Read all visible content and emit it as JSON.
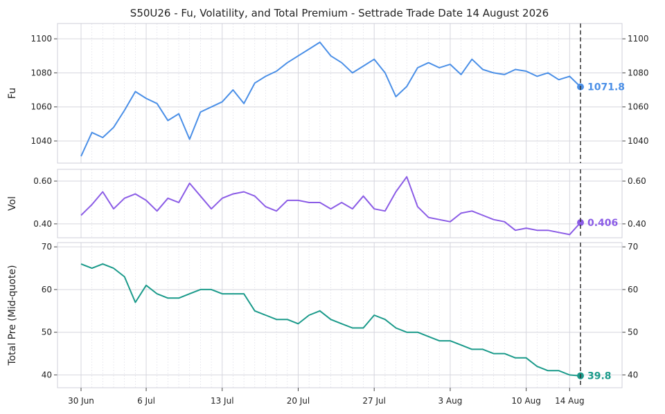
{
  "chart_data": {
    "type": "line",
    "title": "S50U26 - Fu, Volatility, and Total Premium - Settrade Trade Date 14 August 2026",
    "x_ticks": [
      "30 Jun",
      "6 Jul",
      "13 Jul",
      "20 Jul",
      "27 Jul",
      "3 Aug",
      "10 Aug",
      "14 Aug"
    ],
    "marker_date": "15 Aug",
    "grid": true,
    "panels": [
      {
        "id": "fu",
        "ylabel": "Fu",
        "ylim": [
          1027,
          1109
        ],
        "yticks": [
          1040,
          1060,
          1080,
          1100
        ],
        "ytick_labels": [
          "1040",
          "1060",
          "1080",
          "1100"
        ],
        "color": "#4a8fe7",
        "end_value": 1071.8,
        "end_label": "1071.8",
        "series": [
          [
            "30 Jun",
            1031
          ],
          [
            "1 Jul",
            1045
          ],
          [
            "2 Jul",
            1042
          ],
          [
            "3 Jul",
            1048
          ],
          [
            "4 Jul",
            1058
          ],
          [
            "5 Jul",
            1069
          ],
          [
            "6 Jul",
            1065
          ],
          [
            "7 Jul",
            1062
          ],
          [
            "8 Jul",
            1052
          ],
          [
            "9 Jul",
            1056
          ],
          [
            "10 Jul",
            1041
          ],
          [
            "11 Jul",
            1057
          ],
          [
            "12 Jul",
            1060
          ],
          [
            "13 Jul",
            1063
          ],
          [
            "14 Jul",
            1070
          ],
          [
            "15 Jul",
            1062
          ],
          [
            "16 Jul",
            1074
          ],
          [
            "17 Jul",
            1078
          ],
          [
            "18 Jul",
            1081
          ],
          [
            "19 Jul",
            1086
          ],
          [
            "20 Jul",
            1090
          ],
          [
            "21 Jul",
            1094
          ],
          [
            "22 Jul",
            1098
          ],
          [
            "23 Jul",
            1090
          ],
          [
            "24 Jul",
            1086
          ],
          [
            "25 Jul",
            1080
          ],
          [
            "26 Jul",
            1084
          ],
          [
            "27 Jul",
            1088
          ],
          [
            "28 Jul",
            1080
          ],
          [
            "29 Jul",
            1066
          ],
          [
            "30 Jul",
            1072
          ],
          [
            "31 Jul",
            1083
          ],
          [
            "1 Aug",
            1086
          ],
          [
            "2 Aug",
            1083
          ],
          [
            "3 Aug",
            1085
          ],
          [
            "4 Aug",
            1079
          ],
          [
            "5 Aug",
            1088
          ],
          [
            "6 Aug",
            1082
          ],
          [
            "7 Aug",
            1080
          ],
          [
            "8 Aug",
            1079
          ],
          [
            "9 Aug",
            1082
          ],
          [
            "10 Aug",
            1081
          ],
          [
            "11 Aug",
            1078
          ],
          [
            "12 Aug",
            1080
          ],
          [
            "13 Aug",
            1076
          ],
          [
            "14 Aug",
            1078
          ],
          [
            "15 Aug",
            1071.8
          ]
        ]
      },
      {
        "id": "vol",
        "ylabel": "Vol",
        "ylim": [
          0.335,
          0.655
        ],
        "yticks": [
          0.4,
          0.6
        ],
        "ytick_labels": [
          "0.40",
          "0.60"
        ],
        "color": "#8b5ce6",
        "end_value": 0.406,
        "end_label": "0.406",
        "series": [
          [
            "30 Jun",
            0.44
          ],
          [
            "1 Jul",
            0.49
          ],
          [
            "2 Jul",
            0.55
          ],
          [
            "3 Jul",
            0.47
          ],
          [
            "4 Jul",
            0.52
          ],
          [
            "5 Jul",
            0.54
          ],
          [
            "6 Jul",
            0.51
          ],
          [
            "7 Jul",
            0.46
          ],
          [
            "8 Jul",
            0.52
          ],
          [
            "9 Jul",
            0.5
          ],
          [
            "10 Jul",
            0.59
          ],
          [
            "11 Jul",
            0.53
          ],
          [
            "12 Jul",
            0.47
          ],
          [
            "13 Jul",
            0.52
          ],
          [
            "14 Jul",
            0.54
          ],
          [
            "15 Jul",
            0.55
          ],
          [
            "16 Jul",
            0.53
          ],
          [
            "17 Jul",
            0.48
          ],
          [
            "18 Jul",
            0.46
          ],
          [
            "19 Jul",
            0.51
          ],
          [
            "20 Jul",
            0.51
          ],
          [
            "21 Jul",
            0.5
          ],
          [
            "22 Jul",
            0.5
          ],
          [
            "23 Jul",
            0.47
          ],
          [
            "24 Jul",
            0.5
          ],
          [
            "25 Jul",
            0.47
          ],
          [
            "26 Jul",
            0.53
          ],
          [
            "27 Jul",
            0.47
          ],
          [
            "28 Jul",
            0.46
          ],
          [
            "29 Jul",
            0.55
          ],
          [
            "30 Jul",
            0.62
          ],
          [
            "31 Jul",
            0.48
          ],
          [
            "1 Aug",
            0.43
          ],
          [
            "2 Aug",
            0.42
          ],
          [
            "3 Aug",
            0.41
          ],
          [
            "4 Aug",
            0.45
          ],
          [
            "5 Aug",
            0.46
          ],
          [
            "6 Aug",
            0.44
          ],
          [
            "7 Aug",
            0.42
          ],
          [
            "8 Aug",
            0.41
          ],
          [
            "9 Aug",
            0.37
          ],
          [
            "10 Aug",
            0.38
          ],
          [
            "11 Aug",
            0.37
          ],
          [
            "12 Aug",
            0.37
          ],
          [
            "13 Aug",
            0.36
          ],
          [
            "14 Aug",
            0.35
          ],
          [
            "15 Aug",
            0.406
          ]
        ]
      },
      {
        "id": "premium",
        "ylabel": "Total Pre (Mid-quote)",
        "ylim": [
          37,
          71
        ],
        "yticks": [
          40,
          50,
          60,
          70
        ],
        "ytick_labels": [
          "40",
          "50",
          "60",
          "70"
        ],
        "color": "#1a9a8a",
        "end_value": 39.8,
        "end_label": "39.8",
        "series": [
          [
            "30 Jun",
            66
          ],
          [
            "1 Jul",
            65
          ],
          [
            "2 Jul",
            66
          ],
          [
            "3 Jul",
            65
          ],
          [
            "4 Jul",
            63
          ],
          [
            "5 Jul",
            57
          ],
          [
            "6 Jul",
            61
          ],
          [
            "7 Jul",
            59
          ],
          [
            "8 Jul",
            58
          ],
          [
            "9 Jul",
            58
          ],
          [
            "10 Jul",
            59
          ],
          [
            "11 Jul",
            60
          ],
          [
            "12 Jul",
            60
          ],
          [
            "13 Jul",
            59
          ],
          [
            "14 Jul",
            59
          ],
          [
            "15 Jul",
            59
          ],
          [
            "16 Jul",
            55
          ],
          [
            "17 Jul",
            54
          ],
          [
            "18 Jul",
            53
          ],
          [
            "19 Jul",
            53
          ],
          [
            "20 Jul",
            52
          ],
          [
            "21 Jul",
            54
          ],
          [
            "22 Jul",
            55
          ],
          [
            "23 Jul",
            53
          ],
          [
            "24 Jul",
            52
          ],
          [
            "25 Jul",
            51
          ],
          [
            "26 Jul",
            51
          ],
          [
            "27 Jul",
            54
          ],
          [
            "28 Jul",
            53
          ],
          [
            "29 Jul",
            51
          ],
          [
            "30 Jul",
            50
          ],
          [
            "31 Jul",
            50
          ],
          [
            "1 Aug",
            49
          ],
          [
            "2 Aug",
            48
          ],
          [
            "3 Aug",
            48
          ],
          [
            "4 Aug",
            47
          ],
          [
            "5 Aug",
            46
          ],
          [
            "6 Aug",
            46
          ],
          [
            "7 Aug",
            45
          ],
          [
            "8 Aug",
            45
          ],
          [
            "9 Aug",
            44
          ],
          [
            "10 Aug",
            44
          ],
          [
            "11 Aug",
            42
          ],
          [
            "12 Aug",
            41
          ],
          [
            "13 Aug",
            41
          ],
          [
            "14 Aug",
            40
          ],
          [
            "15 Aug",
            39.8
          ]
        ]
      }
    ]
  }
}
